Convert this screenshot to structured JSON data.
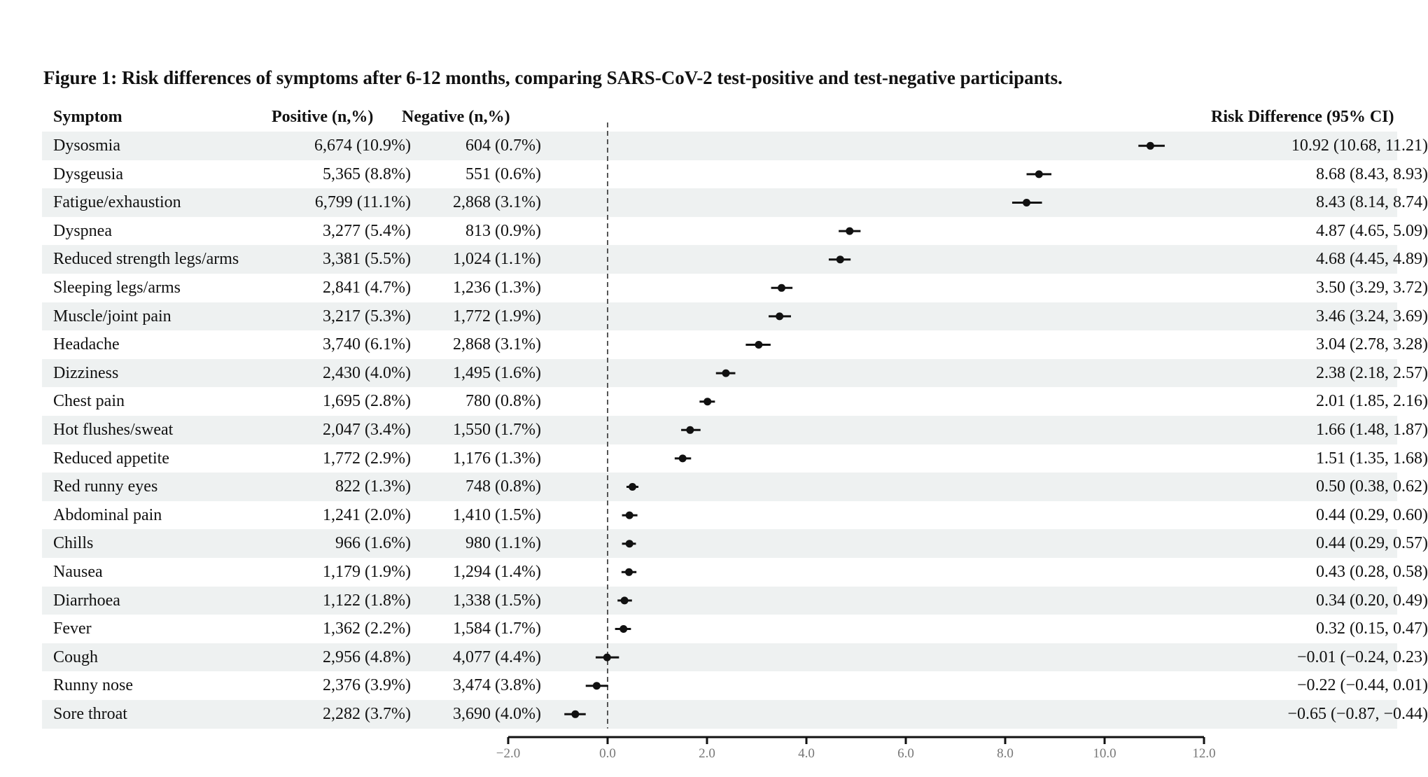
{
  "title": "Figure 1: Risk differences of symptoms after 6-12 months, comparing SARS-CoV-2 test-positive and test-negative participants.",
  "headers": {
    "symptom": "Symptom",
    "positive": "Positive (n,%)",
    "negative": "Negative (n,%)",
    "rd": "Risk Difference (95% CI)"
  },
  "rows": [
    {
      "symptom": "Dysosmia",
      "positive": "6,674 (10.9%)",
      "negative": "604 (0.7%)",
      "rd": "10.92 (10.68, 11.21)"
    },
    {
      "symptom": "Dysgeusia",
      "positive": "5,365 (8.8%)",
      "negative": "551 (0.6%)",
      "rd": "8.68 (8.43, 8.93)"
    },
    {
      "symptom": "Fatigue/exhaustion",
      "positive": "6,799 (11.1%)",
      "negative": "2,868 (3.1%)",
      "rd": "8.43 (8.14, 8.74)"
    },
    {
      "symptom": "Dyspnea",
      "positive": "3,277 (5.4%)",
      "negative": "813 (0.9%)",
      "rd": "4.87 (4.65, 5.09)"
    },
    {
      "symptom": "Reduced strength legs/arms",
      "positive": "3,381 (5.5%)",
      "negative": "1,024 (1.1%)",
      "rd": "4.68 (4.45, 4.89)"
    },
    {
      "symptom": "Sleeping legs/arms",
      "positive": "2,841 (4.7%)",
      "negative": "1,236 (1.3%)",
      "rd": "3.50 (3.29, 3.72)"
    },
    {
      "symptom": "Muscle/joint pain",
      "positive": "3,217 (5.3%)",
      "negative": "1,772 (1.9%)",
      "rd": "3.46 (3.24, 3.69)"
    },
    {
      "symptom": "Headache",
      "positive": "3,740 (6.1%)",
      "negative": "2,868 (3.1%)",
      "rd": "3.04 (2.78, 3.28)"
    },
    {
      "symptom": "Dizziness",
      "positive": "2,430 (4.0%)",
      "negative": "1,495 (1.6%)",
      "rd": "2.38 (2.18, 2.57)"
    },
    {
      "symptom": "Chest pain",
      "positive": "1,695 (2.8%)",
      "negative": "780 (0.8%)",
      "rd": "2.01 (1.85, 2.16)"
    },
    {
      "symptom": "Hot flushes/sweat",
      "positive": "2,047 (3.4%)",
      "negative": "1,550 (1.7%)",
      "rd": "1.66 (1.48, 1.87)"
    },
    {
      "symptom": "Reduced appetite",
      "positive": "1,772 (2.9%)",
      "negative": "1,176 (1.3%)",
      "rd": "1.51 (1.35, 1.68)"
    },
    {
      "symptom": "Red runny eyes",
      "positive": "822 (1.3%)",
      "negative": "748 (0.8%)",
      "rd": "0.50 (0.38, 0.62)"
    },
    {
      "symptom": "Abdominal pain",
      "positive": "1,241 (2.0%)",
      "negative": "1,410 (1.5%)",
      "rd": "0.44 (0.29, 0.60)"
    },
    {
      "symptom": "Chills",
      "positive": "966 (1.6%)",
      "negative": "980 (1.1%)",
      "rd": "0.44 (0.29, 0.57)"
    },
    {
      "symptom": "Nausea",
      "positive": "1,179 (1.9%)",
      "negative": "1,294 (1.4%)",
      "rd": "0.43 (0.28, 0.58)"
    },
    {
      "symptom": "Diarrhoea",
      "positive": "1,122 (1.8%)",
      "negative": "1,338 (1.5%)",
      "rd": "0.34 (0.20, 0.49)"
    },
    {
      "symptom": "Fever",
      "positive": "1,362 (2.2%)",
      "negative": "1,584 (1.7%)",
      "rd": "0.32 (0.15, 0.47)"
    },
    {
      "symptom": "Cough",
      "positive": "2,956 (4.8%)",
      "negative": "4,077 (4.4%)",
      "rd": "−0.01 (−0.24, 0.23)"
    },
    {
      "symptom": "Runny nose",
      "positive": "2,376 (3.9%)",
      "negative": "3,474 (3.8%)",
      "rd": "−0.22 (−0.44, 0.01)"
    },
    {
      "symptom": "Sore throat",
      "positive": "2,282 (3.7%)",
      "negative": "3,690 (4.0%)",
      "rd": "−0.65 (−0.87, −0.44)"
    }
  ],
  "chart_data": {
    "type": "scatter",
    "subtype": "forest",
    "xlim": [
      -2,
      12
    ],
    "xticks": [
      "−2.0",
      "0.0",
      "2.0",
      "4.0",
      "6.0",
      "8.0",
      "10.0",
      "12.0"
    ],
    "xtick_values": [
      -2,
      0,
      2,
      4,
      6,
      8,
      10,
      12
    ],
    "reference_line": 0,
    "estimates": [
      10.92,
      8.68,
      8.43,
      4.87,
      4.68,
      3.5,
      3.46,
      3.04,
      2.38,
      2.01,
      1.66,
      1.51,
      0.5,
      0.44,
      0.44,
      0.43,
      0.34,
      0.32,
      -0.01,
      -0.22,
      -0.65
    ],
    "lower": [
      10.68,
      8.43,
      8.14,
      4.65,
      4.45,
      3.29,
      3.24,
      2.78,
      2.18,
      1.85,
      1.48,
      1.35,
      0.38,
      0.29,
      0.29,
      0.28,
      0.2,
      0.15,
      -0.24,
      -0.44,
      -0.87
    ],
    "upper": [
      11.21,
      8.93,
      8.74,
      5.09,
      4.89,
      3.72,
      3.69,
      3.28,
      2.57,
      2.16,
      1.87,
      1.68,
      0.62,
      0.6,
      0.57,
      0.58,
      0.49,
      0.47,
      0.23,
      0.01,
      -0.44
    ]
  }
}
